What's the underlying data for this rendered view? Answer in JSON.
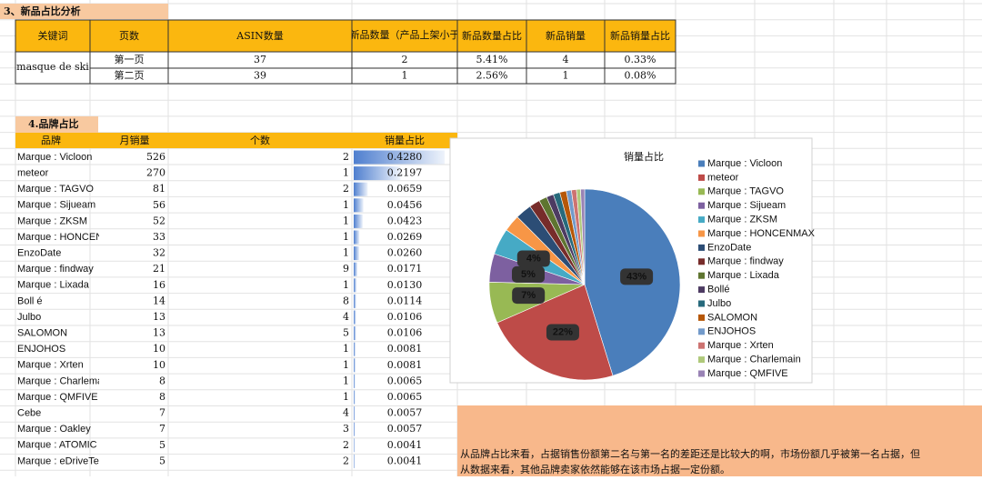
{
  "section1": {
    "title": "3、新品占比分析",
    "headers": [
      "关键词",
      "页数",
      "ASIN数量",
      "新品数量（产品上架小于",
      "新品数量占比",
      "新品销量",
      "新品销量占比"
    ],
    "keyword": "masque de ski",
    "rows": [
      [
        "第一页",
        "37",
        "2",
        "5.41%",
        "4",
        "0.33%"
      ],
      [
        "第二页",
        "39",
        "1",
        "2.56%",
        "1",
        "0.08%"
      ]
    ]
  },
  "section2": {
    "title": "4.品牌占比",
    "headers": [
      "品牌",
      "月销量",
      "个数",
      "销量占比"
    ],
    "rows": [
      [
        "Marque : Vicloon",
        "526",
        "2",
        "0.4280"
      ],
      [
        "meteor",
        "270",
        "1",
        "0.2197"
      ],
      [
        "Marque : TAGVO",
        "81",
        "2",
        "0.0659"
      ],
      [
        "Marque : Sijueam",
        "56",
        "1",
        "0.0456"
      ],
      [
        "Marque : ZKSM",
        "52",
        "1",
        "0.0423"
      ],
      [
        "Marque : HONCENMAX",
        "33",
        "1",
        "0.0269"
      ],
      [
        "EnzoDate",
        "32",
        "1",
        "0.0260"
      ],
      [
        "Marque : findway",
        "21",
        "9",
        "0.0171"
      ],
      [
        "Marque : Lixada",
        "16",
        "1",
        "0.0130"
      ],
      [
        "Boll é",
        "14",
        "8",
        "0.0114"
      ],
      [
        "Julbo",
        "13",
        "4",
        "0.0106"
      ],
      [
        "SALOMON",
        "13",
        "5",
        "0.0106"
      ],
      [
        "ENJOHOS",
        "10",
        "1",
        "0.0081"
      ],
      [
        "Marque : Xrten",
        "10",
        "1",
        "0.0081"
      ],
      [
        "Marque : Charlemain",
        "8",
        "1",
        "0.0065"
      ],
      [
        "Marque : QMFIVE",
        "8",
        "1",
        "0.0065"
      ],
      [
        "Cebe",
        "7",
        "4",
        "0.0057"
      ],
      [
        "Marque : Oakley",
        "7",
        "3",
        "0.0057"
      ],
      [
        "Marque : ATOMIC",
        "5",
        "2",
        "0.0041"
      ],
      [
        "Marque : eDriveTech",
        "5",
        "2",
        "0.0041"
      ]
    ]
  },
  "chart_data": {
    "type": "pie",
    "title": "销量占比",
    "categories": [
      "Marque : Vicloon",
      "meteor",
      "Marque : TAGVO",
      "Marque : Sijueam",
      "Marque : ZKSM",
      "Marque : HONCENMAX",
      "EnzoDate",
      "Marque : findway",
      "Marque : Lixada",
      "Bollé",
      "Julbo",
      "SALOMON",
      "ENJOHOS",
      "Marque : Xrten",
      "Marque : Charlemain",
      "Marque : QMFIVE"
    ],
    "values": [
      42.8,
      21.97,
      6.59,
      4.56,
      4.23,
      2.69,
      2.6,
      1.71,
      1.3,
      1.14,
      1.06,
      1.06,
      0.81,
      0.81,
      0.65,
      0.65
    ],
    "value_labels": [
      "43%",
      "22%",
      "7%",
      "5%",
      "4%",
      null,
      null,
      null,
      null,
      null,
      null,
      null,
      null,
      null,
      null,
      null
    ],
    "colors": [
      "#4a7ebb",
      "#be4b48",
      "#98b954",
      "#7d60a0",
      "#46aac5",
      "#f79646",
      "#2c4d75",
      "#772c2a",
      "#5f7530",
      "#4d3b62",
      "#276a7c",
      "#b65708",
      "#729aca",
      "#cd7371",
      "#afc97a",
      "#9983b5"
    ]
  },
  "note": [
    "从品牌占比来看，占据销售份额第二名与第一名的差距还是比较大的啊，市场份额几乎被第一名占据，但",
    "从数据来看，其他品牌卖家依然能够在该市场占据一定份额。"
  ]
}
